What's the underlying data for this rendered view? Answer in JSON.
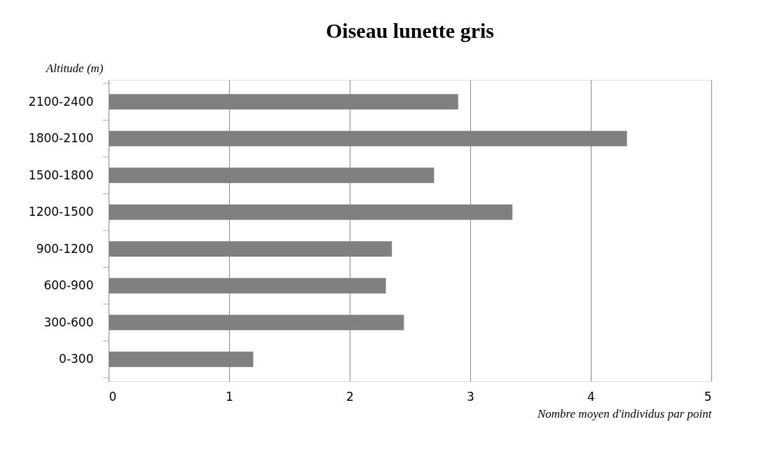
{
  "chart_data": {
    "type": "bar",
    "orientation": "horizontal",
    "title": "Oiseau lunette gris",
    "ylabel": "Altitude (m)",
    "xlabel": "Nombre moyen d'individus par point",
    "categories": [
      "2100-2400",
      "1800-2100",
      "1500-1800",
      "1200-1500",
      "900-1200",
      "600-900",
      "300-600",
      "0-300"
    ],
    "values": [
      2.9,
      4.3,
      2.7,
      3.35,
      2.35,
      2.3,
      2.45,
      1.2
    ],
    "color": "#808080",
    "xlim": [
      0,
      5
    ],
    "xticks": [
      0,
      1,
      2,
      3,
      4,
      5
    ],
    "grid": "x"
  }
}
